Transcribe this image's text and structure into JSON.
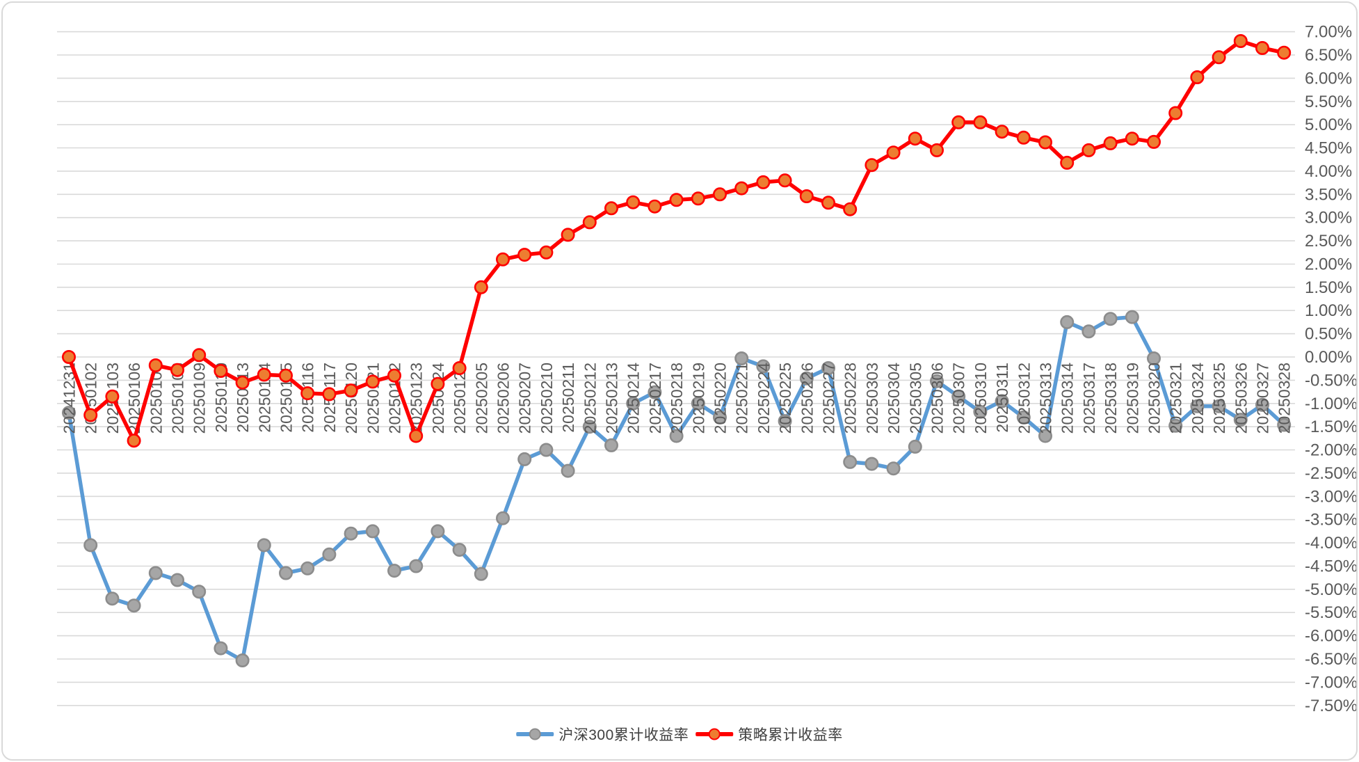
{
  "chart_data": {
    "type": "line",
    "title": "",
    "xlabel": "",
    "ylabel": "",
    "x_categories": [
      "20241231",
      "20250102",
      "20250103",
      "20250106",
      "20250107",
      "20250108",
      "20250109",
      "20250110",
      "20250113",
      "20250114",
      "20250115",
      "20250116",
      "20250117",
      "20250120",
      "20250121",
      "20250122",
      "20250123",
      "20250124",
      "20250127",
      "20250205",
      "20250206",
      "20250207",
      "20250210",
      "20250211",
      "20250212",
      "20250213",
      "20250214",
      "20250217",
      "20250218",
      "20250219",
      "20250220",
      "20250221",
      "20250224",
      "20250225",
      "20250226",
      "20250227",
      "20250228",
      "20250303",
      "20250304",
      "20250305",
      "20250306",
      "20250307",
      "20250310",
      "20250311",
      "20250312",
      "20250313",
      "20250314",
      "20250317",
      "20250318",
      "20250319",
      "20250320",
      "20250321",
      "20250324",
      "20250325",
      "20250326",
      "20250327",
      "20250328"
    ],
    "series": [
      {
        "name": "沪深300累计收益率",
        "unit": "percent",
        "line_color": "#5B9BD5",
        "marker_fill": "#A6A6A6",
        "marker_stroke": "#8C8C8C",
        "values": [
          -1.2,
          -4.05,
          -5.2,
          -5.35,
          -4.65,
          -4.8,
          -5.05,
          -6.27,
          -6.53,
          -4.05,
          -4.65,
          -4.55,
          -4.25,
          -3.8,
          -3.75,
          -4.6,
          -4.5,
          -3.75,
          -4.15,
          -4.67,
          -3.47,
          -2.2,
          -2.0,
          -2.45,
          -1.5,
          -1.9,
          -1.0,
          -0.76,
          -1.7,
          -1.0,
          -1.3,
          -0.03,
          -0.2,
          -1.38,
          -0.46,
          -0.24,
          -2.26,
          -2.3,
          -2.4,
          -1.93,
          -0.52,
          -0.85,
          -1.18,
          -0.95,
          -1.3,
          -1.7,
          0.75,
          0.55,
          0.82,
          0.86,
          -0.03,
          -1.48,
          -1.06,
          -1.06,
          -1.35,
          -1.03,
          -1.46
        ]
      },
      {
        "name": "策略累计收益率",
        "unit": "percent",
        "line_color": "#FF0000",
        "marker_fill": "#ED7D31",
        "marker_stroke": "#FF0000",
        "values": [
          0.0,
          -1.25,
          -0.85,
          -1.8,
          -0.18,
          -0.28,
          0.04,
          -0.3,
          -0.55,
          -0.38,
          -0.4,
          -0.78,
          -0.8,
          -0.72,
          -0.53,
          -0.4,
          -1.7,
          -0.58,
          -0.24,
          1.5,
          2.1,
          2.2,
          2.25,
          2.63,
          2.9,
          3.2,
          3.33,
          3.24,
          3.38,
          3.41,
          3.5,
          3.63,
          3.76,
          3.8,
          3.46,
          3.32,
          3.18,
          4.13,
          4.4,
          4.7,
          4.45,
          5.05,
          5.05,
          4.85,
          4.72,
          4.62,
          4.18,
          4.45,
          4.6,
          4.7,
          4.63,
          5.25,
          6.02,
          6.45,
          6.8,
          6.65,
          6.55
        ]
      }
    ],
    "y_axis": {
      "side": "right",
      "min": -7.5,
      "max": 7.0,
      "step": 0.5,
      "tick_labels": [
        "7.00%",
        "6.50%",
        "6.00%",
        "5.50%",
        "5.00%",
        "4.50%",
        "4.00%",
        "3.50%",
        "3.00%",
        "2.50%",
        "2.00%",
        "1.50%",
        "1.00%",
        "0.50%",
        "0.00%",
        "-0.50%",
        "-1.00%",
        "-1.50%",
        "-2.00%",
        "-2.50%",
        "-3.00%",
        "-3.50%",
        "-4.00%",
        "-4.50%",
        "-5.00%",
        "-5.50%",
        "-6.00%",
        "-6.50%",
        "-7.00%",
        "-7.50%"
      ]
    },
    "x_axis": {
      "label_rotation_degrees": -90,
      "labels_at_zero_line": true
    },
    "grid": true,
    "gridline_color": "#D9D9D9",
    "axis_label_color": "#595959",
    "background_color": "#FFFFFF",
    "legend_position": "bottom-center"
  }
}
